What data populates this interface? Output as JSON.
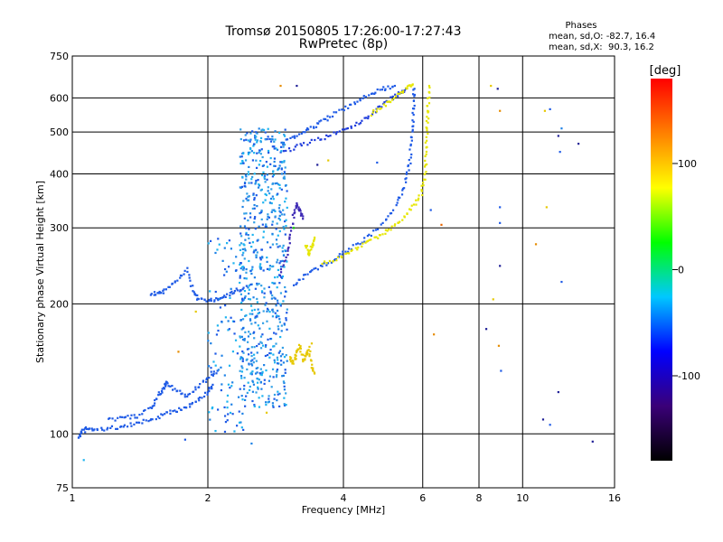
{
  "chart_data": {
    "type": "scatter",
    "title": "Tromsø 20150805 17:26:00-17:27:43",
    "subtitle": "RwPretec (8p)",
    "xlabel": "Frequency [MHz]",
    "ylabel": "Stationary phase Virtual Height [km]",
    "x_scale": "log",
    "y_scale": "log",
    "xlim": [
      1,
      16
    ],
    "ylim": [
      75,
      750
    ],
    "x_ticks": [
      1,
      2,
      4,
      6,
      8,
      10,
      16
    ],
    "y_ticks": [
      75,
      100,
      200,
      300,
      400,
      500,
      600,
      750
    ],
    "grid": true,
    "phase_stats": {
      "heading": "Phases",
      "line_o": "mean, sd,O: -82.7, 16.4",
      "line_x": "mean, sd,X:  90.3, 16.2"
    },
    "colorbar": {
      "unit": "[deg]",
      "ticks": [
        100,
        0,
        -100
      ],
      "range": [
        -180,
        180
      ],
      "colors": [
        "#000000",
        "#3a0078",
        "#0000ff",
        "#00c8ff",
        "#00ff00",
        "#ffff00",
        "#ff8000",
        "#ff0000"
      ]
    },
    "series": [
      {
        "color": "#1e5ae6",
        "points": [
          [
            1.03,
            98
          ],
          [
            1.05,
            101
          ],
          [
            1.08,
            103
          ],
          [
            1.12,
            102
          ],
          [
            1.2,
            103
          ],
          [
            1.3,
            104
          ],
          [
            1.4,
            106
          ],
          [
            1.5,
            108
          ],
          [
            1.6,
            111
          ],
          [
            1.7,
            113
          ],
          [
            1.8,
            116
          ],
          [
            1.9,
            120
          ],
          [
            2.0,
            125
          ],
          [
            2.05,
            130
          ]
        ]
      },
      {
        "color": "#1e5ae6",
        "points": [
          [
            1.2,
            108
          ],
          [
            1.3,
            109
          ],
          [
            1.4,
            110
          ],
          [
            1.5,
            115
          ],
          [
            1.55,
            122
          ],
          [
            1.6,
            128
          ],
          [
            1.62,
            132
          ],
          [
            1.7,
            126
          ],
          [
            1.8,
            122
          ],
          [
            1.9,
            128
          ],
          [
            2.0,
            135
          ],
          [
            2.1,
            140
          ]
        ]
      },
      {
        "color": "#1e5ae6",
        "points": [
          [
            1.5,
            210
          ],
          [
            1.55,
            212
          ],
          [
            1.6,
            214
          ],
          [
            1.7,
            225
          ],
          [
            1.8,
            240
          ],
          [
            1.85,
            215
          ],
          [
            1.9,
            205
          ],
          [
            2.0,
            203
          ],
          [
            2.1,
            205
          ],
          [
            2.2,
            209
          ],
          [
            2.3,
            214
          ],
          [
            2.4,
            218
          ]
        ]
      },
      {
        "color": "#1e5ae6",
        "points": [
          [
            3.1,
            222
          ],
          [
            3.3,
            233
          ],
          [
            3.5,
            242
          ],
          [
            3.8,
            253
          ],
          [
            4.0,
            262
          ],
          [
            4.3,
            275
          ],
          [
            4.6,
            290
          ],
          [
            5.0,
            315
          ],
          [
            5.3,
            345
          ],
          [
            5.5,
            380
          ],
          [
            5.6,
            420
          ],
          [
            5.65,
            470
          ],
          [
            5.7,
            520
          ],
          [
            5.72,
            580
          ],
          [
            5.75,
            630
          ]
        ]
      },
      {
        "color": "#1e5ae6",
        "points": [
          [
            2.9,
            470
          ],
          [
            3.1,
            485
          ],
          [
            3.3,
            505
          ],
          [
            3.5,
            520
          ],
          [
            3.7,
            540
          ],
          [
            4.0,
            565
          ],
          [
            4.3,
            590
          ],
          [
            4.6,
            615
          ],
          [
            4.9,
            630
          ],
          [
            5.2,
            640
          ]
        ]
      },
      {
        "color": "#1e3cdc",
        "points": [
          [
            2.95,
            450
          ],
          [
            3.2,
            465
          ],
          [
            3.5,
            480
          ],
          [
            3.8,
            495
          ],
          [
            4.1,
            510
          ],
          [
            4.4,
            530
          ],
          [
            4.7,
            560
          ],
          [
            5.0,
            590
          ],
          [
            5.3,
            615
          ],
          [
            5.5,
            630
          ]
        ]
      },
      {
        "color": "#e6e600",
        "points": [
          [
            3.6,
            248
          ],
          [
            3.9,
            255
          ],
          [
            4.2,
            266
          ],
          [
            4.5,
            277
          ],
          [
            4.8,
            288
          ],
          [
            5.1,
            300
          ],
          [
            5.4,
            315
          ],
          [
            5.7,
            335
          ],
          [
            5.95,
            360
          ],
          [
            6.05,
            390
          ],
          [
            6.1,
            430
          ],
          [
            6.12,
            480
          ],
          [
            6.15,
            530
          ],
          [
            6.17,
            580
          ],
          [
            6.2,
            640
          ]
        ]
      },
      {
        "color": "#e6e600",
        "points": [
          [
            4.6,
            550
          ],
          [
            4.9,
            575
          ],
          [
            5.2,
            600
          ],
          [
            5.5,
            630
          ],
          [
            5.7,
            645
          ]
        ]
      },
      {
        "color": "#e6e600",
        "points": [
          [
            3.3,
            275
          ],
          [
            3.35,
            260
          ],
          [
            3.4,
            272
          ],
          [
            3.45,
            285
          ]
        ]
      },
      {
        "color": "#e6c800",
        "points": [
          [
            3.05,
            150
          ],
          [
            3.1,
            145
          ],
          [
            3.15,
            155
          ],
          [
            3.2,
            160
          ],
          [
            3.25,
            148
          ],
          [
            3.3,
            152
          ],
          [
            3.35,
            158
          ],
          [
            3.4,
            142
          ],
          [
            3.45,
            138
          ]
        ]
      },
      {
        "color": "#3c28b4",
        "points": [
          [
            2.88,
            235
          ],
          [
            3.0,
            255
          ],
          [
            3.05,
            285
          ],
          [
            3.1,
            320
          ],
          [
            3.15,
            340
          ],
          [
            3.2,
            330
          ],
          [
            3.25,
            315
          ]
        ]
      }
    ],
    "clouds": [
      {
        "x": [
          2.35,
          3.0
        ],
        "y": [
          115,
          510
        ],
        "count": 650,
        "colors": [
          "#1eb4f0",
          "#1e82e6",
          "#1e5ae6",
          "#32a0e6"
        ]
      },
      {
        "x": [
          2.0,
          2.4
        ],
        "y": [
          100,
          290
        ],
        "count": 110,
        "colors": [
          "#1e82e6",
          "#1eb4f0",
          "#1e5ae6"
        ]
      }
    ],
    "scattered_points": [
      {
        "x": 3.15,
        "y": 640,
        "color": "#1e1e96"
      },
      {
        "x": 2.9,
        "y": 640,
        "color": "#e68c00"
      },
      {
        "x": 3.7,
        "y": 430,
        "color": "#e6c800"
      },
      {
        "x": 3.5,
        "y": 420,
        "color": "#1e1e96"
      },
      {
        "x": 4.75,
        "y": 425,
        "color": "#1e5ae6"
      },
      {
        "x": 3.1,
        "y": 300,
        "color": "#00c800"
      },
      {
        "x": 6.25,
        "y": 330,
        "color": "#1e5ae6"
      },
      {
        "x": 6.6,
        "y": 305,
        "color": "#e66400"
      },
      {
        "x": 6.35,
        "y": 170,
        "color": "#e68c00"
      },
      {
        "x": 8.5,
        "y": 640,
        "color": "#e6c800"
      },
      {
        "x": 8.8,
        "y": 630,
        "color": "#1e1e96"
      },
      {
        "x": 8.9,
        "y": 560,
        "color": "#e68c00"
      },
      {
        "x": 8.9,
        "y": 335,
        "color": "#1e5ae6"
      },
      {
        "x": 8.9,
        "y": 308,
        "color": "#1e5ae6"
      },
      {
        "x": 8.9,
        "y": 245,
        "color": "#1e1e96"
      },
      {
        "x": 8.6,
        "y": 205,
        "color": "#e6c800"
      },
      {
        "x": 8.3,
        "y": 175,
        "color": "#1e1e96"
      },
      {
        "x": 8.85,
        "y": 160,
        "color": "#e68c00"
      },
      {
        "x": 8.95,
        "y": 140,
        "color": "#1e5ae6"
      },
      {
        "x": 11.2,
        "y": 560,
        "color": "#e6c800"
      },
      {
        "x": 11.5,
        "y": 565,
        "color": "#1e5ae6"
      },
      {
        "x": 11.3,
        "y": 335,
        "color": "#e6c800"
      },
      {
        "x": 10.7,
        "y": 275,
        "color": "#e68c00"
      },
      {
        "x": 12.2,
        "y": 510,
        "color": "#1e82e6"
      },
      {
        "x": 12.0,
        "y": 490,
        "color": "#1e1e96"
      },
      {
        "x": 12.1,
        "y": 450,
        "color": "#1e5ae6"
      },
      {
        "x": 13.3,
        "y": 470,
        "color": "#1e1e96"
      },
      {
        "x": 12.2,
        "y": 225,
        "color": "#1e5ae6"
      },
      {
        "x": 12.0,
        "y": 125,
        "color": "#1e1e96"
      },
      {
        "x": 11.1,
        "y": 108,
        "color": "#1e1e96"
      },
      {
        "x": 11.5,
        "y": 105,
        "color": "#1e5ae6"
      },
      {
        "x": 14.3,
        "y": 96,
        "color": "#1e1e96"
      },
      {
        "x": 1.78,
        "y": 97,
        "color": "#1e5ae6"
      },
      {
        "x": 2.5,
        "y": 95,
        "color": "#1e82e6"
      },
      {
        "x": 1.88,
        "y": 192,
        "color": "#e6c800"
      },
      {
        "x": 1.72,
        "y": 155,
        "color": "#e68c00"
      },
      {
        "x": 2.7,
        "y": 112,
        "color": "#e6c800"
      },
      {
        "x": 1.06,
        "y": 87,
        "color": "#1eb4f0"
      },
      {
        "x": 3.4,
        "y": 162,
        "color": "#e6c800"
      }
    ]
  }
}
